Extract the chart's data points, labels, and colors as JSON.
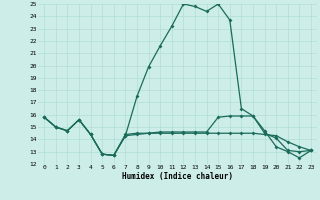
{
  "xlabel": "Humidex (Indice chaleur)",
  "x_ticks": [
    0,
    1,
    2,
    3,
    4,
    5,
    6,
    7,
    8,
    9,
    10,
    11,
    12,
    13,
    14,
    15,
    16,
    17,
    18,
    19,
    20,
    21,
    22,
    23
  ],
  "xlim": [
    -0.5,
    23.5
  ],
  "ylim": [
    12,
    25
  ],
  "y_ticks": [
    12,
    13,
    14,
    15,
    16,
    17,
    18,
    19,
    20,
    21,
    22,
    23,
    24,
    25
  ],
  "background_color": "#cdeee8",
  "grid_color": "#b0ddd4",
  "line_color": "#1a6b5a",
  "line1": [
    15.8,
    15.0,
    14.7,
    15.6,
    14.4,
    12.8,
    12.7,
    14.3,
    17.5,
    19.9,
    21.6,
    23.2,
    25.0,
    24.8,
    24.4,
    25.0,
    23.7,
    16.5,
    15.9,
    14.7,
    13.4,
    13.0,
    12.5,
    13.1
  ],
  "line2": [
    15.8,
    15.0,
    14.7,
    15.6,
    14.4,
    12.8,
    12.7,
    14.4,
    14.5,
    14.5,
    14.6,
    14.6,
    14.6,
    14.6,
    14.6,
    15.8,
    15.9,
    15.9,
    15.9,
    14.5,
    14.1,
    13.1,
    13.0,
    13.1
  ],
  "line3": [
    15.8,
    15.0,
    14.7,
    15.6,
    14.4,
    12.8,
    12.7,
    14.3,
    14.4,
    14.5,
    14.5,
    14.5,
    14.5,
    14.5,
    14.5,
    14.5,
    14.5,
    14.5,
    14.5,
    14.4,
    14.3,
    13.8,
    13.4,
    13.1
  ]
}
